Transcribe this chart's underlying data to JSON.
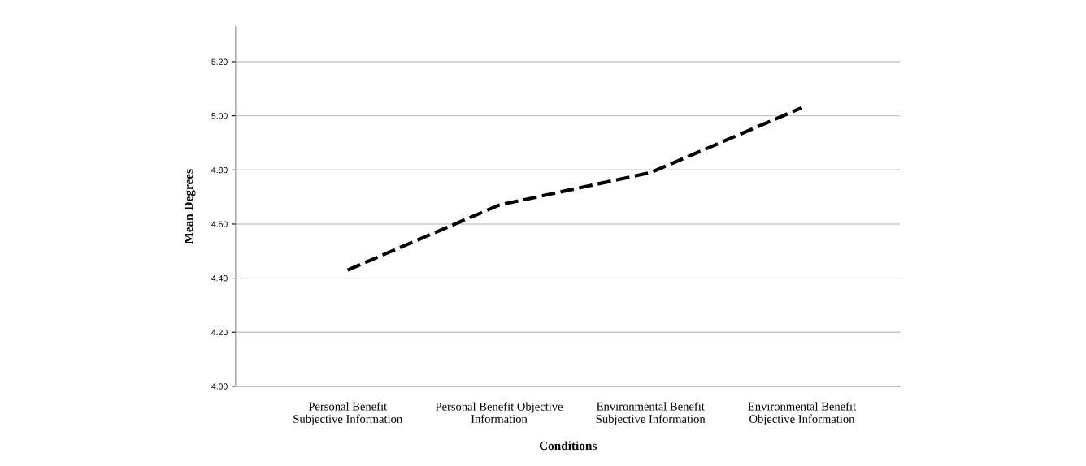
{
  "chart_data": {
    "type": "line",
    "xlabel": "Conditions",
    "ylabel": "Mean Degrees",
    "categories": [
      "Personal Benefit\nSubjective Information",
      "Personal Benefit Objective\nInformation",
      "Environmental Benefit\nSubjective Information",
      "Environmental Benefit\nObjective Information"
    ],
    "series": [
      {
        "color": "#000000",
        "values": [
          4.43,
          4.67,
          4.79,
          5.03
        ]
      }
    ],
    "ylim": [
      4.0,
      5.33
    ],
    "yticks": [
      {
        "value": 4.0,
        "label": "4.00"
      },
      {
        "value": 4.2,
        "label": "4.20"
      },
      {
        "value": 4.4,
        "label": "4.40"
      },
      {
        "value": 4.6,
        "label": "4.60"
      },
      {
        "value": 4.8,
        "label": "4.80"
      },
      {
        "value": 5.0,
        "label": "5.00"
      },
      {
        "value": 5.2,
        "label": "5.20"
      }
    ],
    "grid": "y",
    "line_style": "dashed",
    "marker": "none"
  }
}
